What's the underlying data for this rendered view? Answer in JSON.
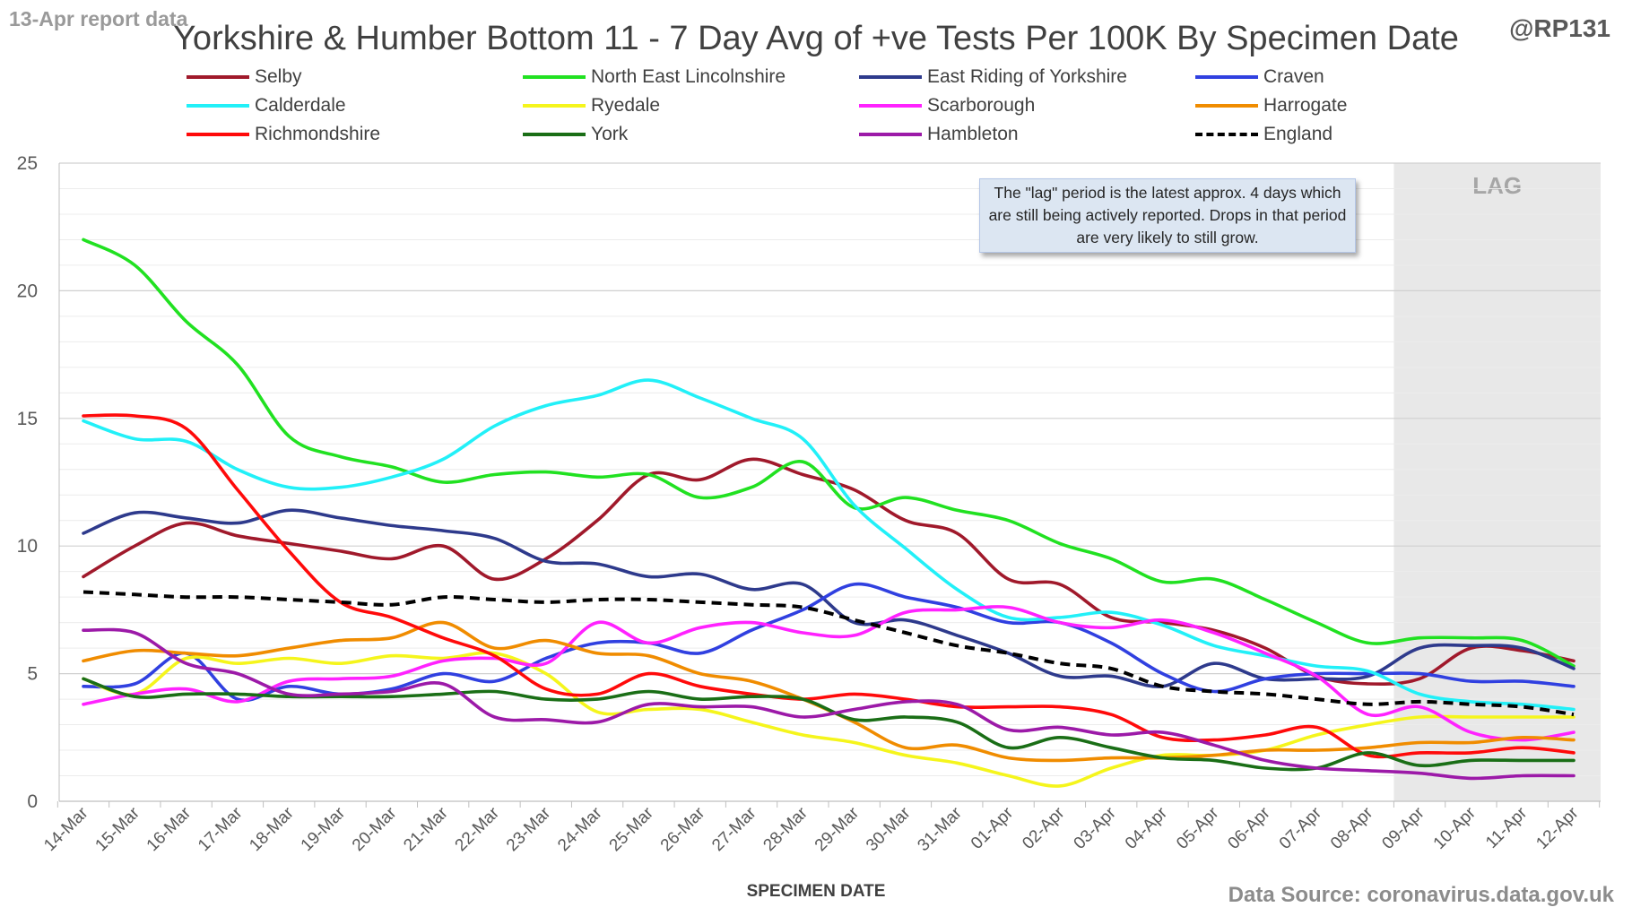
{
  "header": {
    "report_note": "13-Apr report data",
    "handle": "@RP131",
    "source": "Data Source: coronavirus.data.gov.uk"
  },
  "chart_data": {
    "type": "line",
    "title": "Yorkshire & Humber Bottom 11 - 7 Day Avg of +ve Tests Per 100K By Specimen Date",
    "xlabel": "SPECIMEN DATE",
    "ylabel": "",
    "ylim": [
      0,
      25
    ],
    "yticks": [
      0,
      5,
      10,
      15,
      20,
      25
    ],
    "grid": true,
    "legend_position": "top",
    "categories": [
      "14-Mar",
      "15-Mar",
      "16-Mar",
      "17-Mar",
      "18-Mar",
      "19-Mar",
      "20-Mar",
      "21-Mar",
      "22-Mar",
      "23-Mar",
      "24-Mar",
      "25-Mar",
      "26-Mar",
      "27-Mar",
      "28-Mar",
      "29-Mar",
      "30-Mar",
      "31-Mar",
      "01-Apr",
      "02-Apr",
      "03-Apr",
      "04-Apr",
      "05-Apr",
      "06-Apr",
      "07-Apr",
      "08-Apr",
      "09-Apr",
      "10-Apr",
      "11-Apr",
      "12-Apr"
    ],
    "lag": {
      "label": "LAG",
      "start_index": 26,
      "end_index": 29,
      "color": "#e8e8e8"
    },
    "annotation": "The \"lag\" period is the latest approx. 4 days which are still being actively reported. Drops in that period are very likely to still grow.",
    "series": [
      {
        "name": "Selby",
        "color": "#a0192b",
        "values": [
          8.8,
          10.0,
          10.9,
          10.4,
          10.1,
          9.8,
          9.5,
          10.0,
          8.7,
          9.5,
          11.0,
          12.8,
          12.6,
          13.4,
          12.8,
          12.2,
          11.0,
          10.5,
          8.7,
          8.5,
          7.2,
          7.0,
          6.7,
          6.0,
          4.9,
          4.6,
          4.8,
          6.0,
          5.9,
          5.5
        ]
      },
      {
        "name": "North East Lincolnshire",
        "color": "#21e121",
        "values": [
          22.0,
          21.0,
          18.8,
          17.1,
          14.3,
          13.5,
          13.1,
          12.5,
          12.8,
          12.9,
          12.7,
          12.8,
          11.9,
          12.3,
          13.3,
          11.5,
          11.9,
          11.4,
          11.0,
          10.1,
          9.5,
          8.6,
          8.7,
          7.9,
          7.0,
          6.2,
          6.4,
          6.4,
          6.3,
          5.3
        ]
      },
      {
        "name": "East Riding of Yorkshire",
        "color": "#2e3a8c",
        "values": [
          10.5,
          11.3,
          11.1,
          10.9,
          11.4,
          11.1,
          10.8,
          10.6,
          10.3,
          9.4,
          9.3,
          8.8,
          8.9,
          8.3,
          8.5,
          7.0,
          7.1,
          6.5,
          5.8,
          4.9,
          4.9,
          4.5,
          5.4,
          4.8,
          4.8,
          4.9,
          6.0,
          6.1,
          6.0,
          5.2
        ]
      },
      {
        "name": "Craven",
        "color": "#3040e0",
        "values": [
          4.5,
          4.6,
          5.8,
          4.0,
          4.5,
          4.2,
          4.4,
          5.0,
          4.7,
          5.6,
          6.2,
          6.2,
          5.8,
          6.7,
          7.5,
          8.5,
          8.0,
          7.6,
          7.0,
          7.0,
          6.2,
          5.0,
          4.3,
          4.8,
          5.0,
          5.0,
          5.0,
          4.7,
          4.7,
          4.5
        ]
      },
      {
        "name": "Calderdale",
        "color": "#22f0f8",
        "values": [
          14.9,
          14.2,
          14.1,
          13.0,
          12.3,
          12.3,
          12.7,
          13.4,
          14.7,
          15.5,
          15.9,
          16.5,
          15.8,
          15.0,
          14.2,
          11.6,
          9.9,
          8.3,
          7.2,
          7.2,
          7.4,
          6.9,
          6.1,
          5.7,
          5.3,
          5.1,
          4.2,
          3.9,
          3.8,
          3.6
        ]
      },
      {
        "name": "Ryedale",
        "color": "#f5f51c",
        "values": [
          4.8,
          4.2,
          5.6,
          5.4,
          5.6,
          5.4,
          5.7,
          5.6,
          5.8,
          5.0,
          3.5,
          3.6,
          3.6,
          3.1,
          2.6,
          2.3,
          1.8,
          1.5,
          1.0,
          0.6,
          1.3,
          1.8,
          1.8,
          2.0,
          2.6,
          3.0,
          3.3,
          3.3,
          3.3,
          3.3
        ]
      },
      {
        "name": "Scarborough",
        "color": "#ff22ff",
        "values": [
          3.8,
          4.2,
          4.4,
          3.9,
          4.7,
          4.8,
          4.9,
          5.5,
          5.6,
          5.4,
          7.0,
          6.2,
          6.8,
          7.0,
          6.6,
          6.5,
          7.4,
          7.5,
          7.6,
          7.0,
          6.8,
          7.1,
          6.6,
          5.8,
          4.9,
          3.4,
          3.7,
          2.7,
          2.4,
          2.7
        ]
      },
      {
        "name": "Harrogate",
        "color": "#f08c00",
        "values": [
          5.5,
          5.9,
          5.8,
          5.7,
          6.0,
          6.3,
          6.4,
          7.0,
          6.0,
          6.3,
          5.8,
          5.7,
          5.0,
          4.7,
          4.0,
          3.1,
          2.1,
          2.2,
          1.7,
          1.6,
          1.7,
          1.7,
          1.8,
          2.0,
          2.0,
          2.1,
          2.3,
          2.3,
          2.5,
          2.4
        ]
      },
      {
        "name": "Richmondshire",
        "color": "#ff0a0a",
        "values": [
          15.1,
          15.1,
          14.6,
          12.2,
          9.8,
          7.8,
          7.2,
          6.4,
          5.7,
          4.4,
          4.2,
          5.0,
          4.5,
          4.2,
          4.0,
          4.2,
          4.0,
          3.7,
          3.7,
          3.7,
          3.4,
          2.5,
          2.4,
          2.6,
          2.9,
          1.8,
          1.9,
          1.9,
          2.1,
          1.9
        ]
      },
      {
        "name": "York",
        "color": "#1a6e16",
        "values": [
          4.8,
          4.1,
          4.2,
          4.2,
          4.1,
          4.1,
          4.1,
          4.2,
          4.3,
          4.0,
          4.0,
          4.3,
          4.0,
          4.1,
          4.0,
          3.2,
          3.3,
          3.1,
          2.1,
          2.5,
          2.1,
          1.7,
          1.6,
          1.3,
          1.3,
          1.9,
          1.4,
          1.6,
          1.6,
          1.6
        ]
      },
      {
        "name": "Hambleton",
        "color": "#9c1aa8",
        "values": [
          6.7,
          6.6,
          5.4,
          5.0,
          4.2,
          4.2,
          4.3,
          4.6,
          3.3,
          3.2,
          3.1,
          3.8,
          3.7,
          3.7,
          3.3,
          3.6,
          3.9,
          3.8,
          2.8,
          2.9,
          2.6,
          2.7,
          2.2,
          1.6,
          1.3,
          1.2,
          1.1,
          0.9,
          1.0,
          1.0
        ]
      },
      {
        "name": "England",
        "color": "#000000",
        "dashed": true,
        "values": [
          8.2,
          8.1,
          8.0,
          8.0,
          7.9,
          7.8,
          7.7,
          8.0,
          7.9,
          7.8,
          7.9,
          7.9,
          7.8,
          7.7,
          7.6,
          7.1,
          6.6,
          6.1,
          5.8,
          5.4,
          5.2,
          4.5,
          4.3,
          4.2,
          4.0,
          3.8,
          3.9,
          3.8,
          3.7,
          3.4
        ]
      }
    ]
  }
}
